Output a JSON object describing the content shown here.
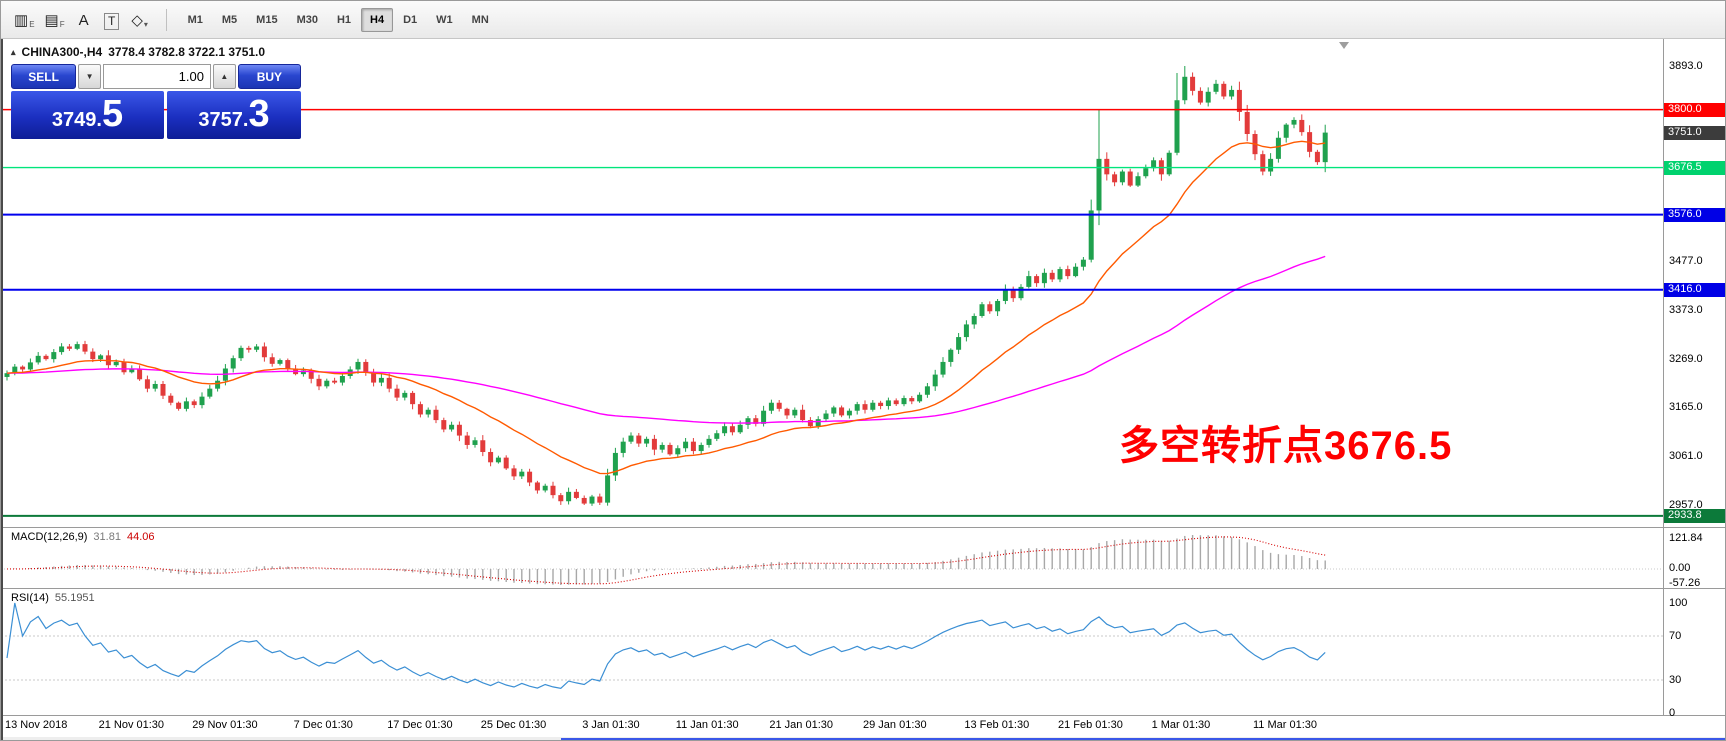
{
  "toolbar": {
    "icons": [
      {
        "name": "chart-type-icon",
        "glyph": "▥",
        "sub": "E"
      },
      {
        "name": "template-icon",
        "glyph": "▤",
        "sub": "F"
      },
      {
        "name": "text-label-icon",
        "glyph": "A",
        "sub": ""
      },
      {
        "name": "text-box-icon",
        "glyph": "T",
        "sub": "",
        "boxed": true
      },
      {
        "name": "drawing-tools-icon",
        "glyph": "◇",
        "sub": "▾"
      }
    ],
    "timeframes": [
      {
        "label": "M1",
        "active": false
      },
      {
        "label": "M5",
        "active": false
      },
      {
        "label": "M15",
        "active": false
      },
      {
        "label": "M30",
        "active": false
      },
      {
        "label": "H1",
        "active": false
      },
      {
        "label": "H4",
        "active": true
      },
      {
        "label": "D1",
        "active": false
      },
      {
        "label": "W1",
        "active": false
      },
      {
        "label": "MN",
        "active": false
      }
    ]
  },
  "chart": {
    "header_icon": "▴",
    "symbol_period": "CHINA300-,H4",
    "ohlc_text": "3778.4 3782.8 3722.1 3751.0"
  },
  "trade_panel": {
    "sell_label": "SELL",
    "buy_label": "BUY",
    "volume": "1.00",
    "down_icon": "▼",
    "up_icon": "▲",
    "sell_price_main": "3749.",
    "sell_price_big": "5",
    "buy_price_main": "3757.",
    "buy_price_big": "3"
  },
  "price_axis": {
    "ticks": [
      "3893.0",
      "3477.0",
      "3373.0",
      "3269.0",
      "3165.0",
      "3061.0",
      "2957.0"
    ],
    "badges": [
      {
        "value": "3800.0",
        "price": 3800.0,
        "bg": "#ff0000"
      },
      {
        "value": "3751.0",
        "price": 3751.0,
        "bg": "#3c3c3c"
      },
      {
        "value": "3676.5",
        "price": 3676.5,
        "bg": "#00d26e"
      },
      {
        "value": "3576.0",
        "price": 3576.0,
        "bg": "#0000e6"
      },
      {
        "value": "3416.0",
        "price": 3416.0,
        "bg": "#0000e6"
      },
      {
        "value": "2933.8",
        "price": 2933.8,
        "bg": "#0c7a3a"
      }
    ]
  },
  "chart_data": {
    "type": "candlestick",
    "symbol": "CHINA300-",
    "timeframe": "H4",
    "ohlc_header": {
      "open": 3778.4,
      "high": 3782.8,
      "low": 3722.1,
      "close": 3751.0
    },
    "up_color": "#1fa14e",
    "down_color": "#e23b3b",
    "y_axis": {
      "min": 2917,
      "max": 3910,
      "ticks": [
        3893.0,
        3477.0,
        3373.0,
        3269.0,
        3165.0,
        3061.0,
        2957.0
      ]
    },
    "horizontal_lines": [
      {
        "price": 3800.0,
        "color": "#ff0000",
        "width": 1.4
      },
      {
        "price": 3676.5,
        "color": "#00e57c",
        "width": 1.4
      },
      {
        "price": 3576.0,
        "color": "#0000ee",
        "width": 2
      },
      {
        "price": 3416.0,
        "color": "#0000ee",
        "width": 2
      },
      {
        "price": 2933.8,
        "color": "#0c7a3a",
        "width": 2
      }
    ],
    "moving_averages": [
      {
        "period": 20,
        "color": "#ff5a00"
      },
      {
        "period": 90,
        "color": "#ff00ff"
      }
    ],
    "closes": [
      3238,
      3252,
      3246,
      3261,
      3275,
      3268,
      3283,
      3295,
      3290,
      3300,
      3284,
      3268,
      3276,
      3255,
      3262,
      3240,
      3248,
      3225,
      3205,
      3215,
      3190,
      3175,
      3162,
      3178,
      3170,
      3188,
      3205,
      3222,
      3248,
      3270,
      3292,
      3288,
      3295,
      3272,
      3258,
      3266,
      3248,
      3236,
      3244,
      3226,
      3210,
      3222,
      3218,
      3232,
      3246,
      3262,
      3240,
      3218,
      3228,
      3205,
      3186,
      3196,
      3172,
      3150,
      3160,
      3138,
      3118,
      3128,
      3105,
      3085,
      3095,
      3070,
      3048,
      3058,
      3035,
      3018,
      3028,
      3005,
      2988,
      2998,
      2978,
      2965,
      2985,
      2972,
      2960,
      2975,
      2962,
      3020,
      3068,
      3092,
      3105,
      3088,
      3098,
      3075,
      3085,
      3065,
      3078,
      3092,
      3072,
      3085,
      3098,
      3110,
      3125,
      3112,
      3128,
      3142,
      3130,
      3158,
      3175,
      3162,
      3148,
      3160,
      3138,
      3125,
      3140,
      3152,
      3165,
      3148,
      3158,
      3172,
      3160,
      3175,
      3168,
      3180,
      3172,
      3185,
      3178,
      3192,
      3210,
      3235,
      3262,
      3288,
      3315,
      3342,
      3360,
      3385,
      3370,
      3392,
      3415,
      3398,
      3422,
      3445,
      3430,
      3452,
      3438,
      3460,
      3445,
      3465,
      3480,
      3585,
      3695,
      3662,
      3645,
      3668,
      3638,
      3658,
      3675,
      3692,
      3662,
      3708,
      3820,
      3870,
      3840,
      3815,
      3838,
      3855,
      3828,
      3842,
      3795,
      3748,
      3705,
      3668,
      3695,
      3740,
      3768,
      3778,
      3752,
      3710,
      3688,
      3751
    ],
    "wick_overrides": {
      "74": {
        "low": 2957
      },
      "140": {
        "high": 3800
      },
      "150": {
        "high": 3878
      },
      "151": {
        "high": 3893
      }
    },
    "x_labels": [
      {
        "label": "13 Nov 2018",
        "i": 0
      },
      {
        "label": "21 Nov 01:30",
        "i": 12
      },
      {
        "label": "29 Nov 01:30",
        "i": 24
      },
      {
        "label": "7 Dec 01:30",
        "i": 37
      },
      {
        "label": "17 Dec 01:30",
        "i": 49
      },
      {
        "label": "25 Dec 01:30",
        "i": 61
      },
      {
        "label": "3 Jan 01:30",
        "i": 74
      },
      {
        "label": "11 Jan 01:30",
        "i": 86
      },
      {
        "label": "21 Jan 01:30",
        "i": 98
      },
      {
        "label": "29 Jan 01:30",
        "i": 110
      },
      {
        "label": "13 Feb 01:30",
        "i": 123
      },
      {
        "label": "21 Feb 01:30",
        "i": 135
      },
      {
        "label": "1 Mar 01:30",
        "i": 147
      },
      {
        "label": "11 Mar 01:30",
        "i": 160
      }
    ],
    "annotation": {
      "text": "多空转折点3676.5",
      "color": "#ff0000"
    },
    "indicators": {
      "macd": {
        "name": "MACD(12,26,9)",
        "main_value": "31.81",
        "signal_value": "44.06",
        "axis": [
          "121.84",
          "0.00",
          "-57.26"
        ],
        "histogram_color": "#a8a8a8",
        "signal_color": "#d40000"
      },
      "rsi": {
        "name": "RSI(14)",
        "value": "55.1951",
        "axis": [
          "100",
          "70",
          "30",
          "0"
        ],
        "levels": [
          70,
          30
        ],
        "color": "#3b8fd4"
      }
    }
  }
}
